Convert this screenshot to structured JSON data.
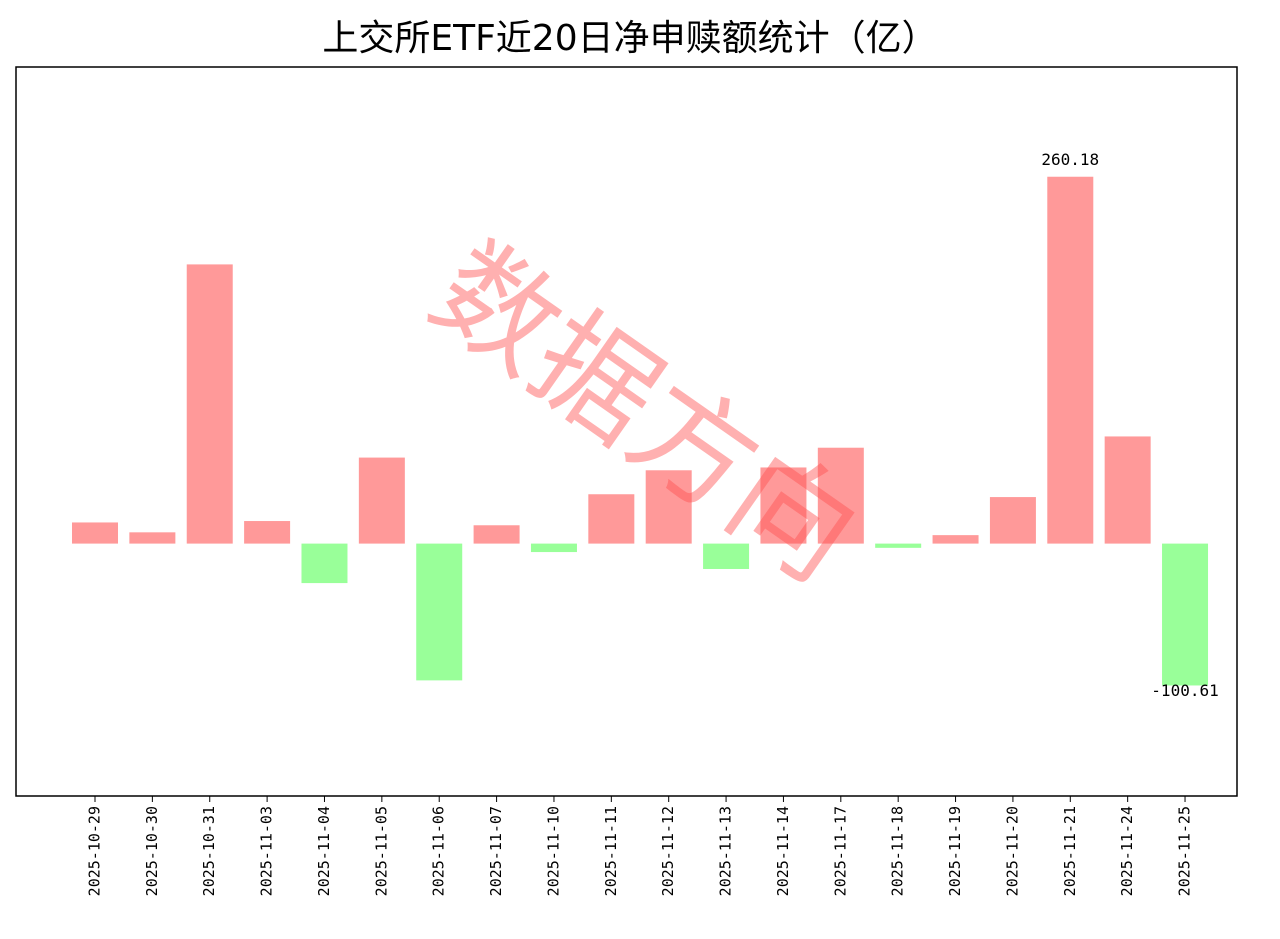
{
  "chart_data": {
    "type": "bar",
    "title": "上交所ETF近20日净申赎额统计（亿）",
    "categories": [
      "2025-10-29",
      "2025-10-30",
      "2025-10-31",
      "2025-11-03",
      "2025-11-04",
      "2025-11-05",
      "2025-11-06",
      "2025-11-07",
      "2025-11-10",
      "2025-11-11",
      "2025-11-12",
      "2025-11-13",
      "2025-11-14",
      "2025-11-17",
      "2025-11-18",
      "2025-11-19",
      "2025-11-20",
      "2025-11-21",
      "2025-11-24",
      "2025-11-25"
    ],
    "values": [
      15,
      8,
      198,
      16,
      -28,
      61,
      -97,
      13,
      -6,
      35,
      52,
      -18,
      54,
      68,
      -3,
      6,
      33,
      260.18,
      76,
      -100.61
    ],
    "positive_color": "#ff9999",
    "negative_color": "#99ff99",
    "ylim": [
      -179,
      338
    ],
    "grid": false,
    "watermark": "数据方向"
  }
}
